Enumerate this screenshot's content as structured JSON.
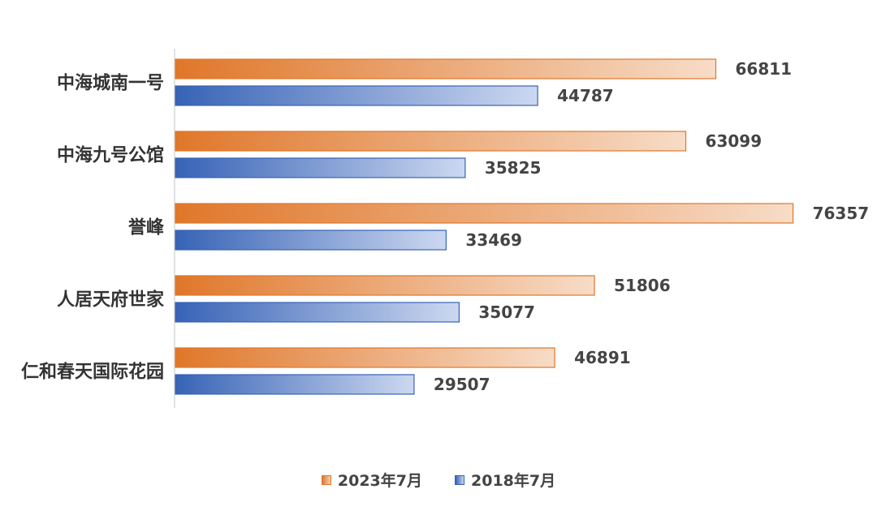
{
  "chart_data": {
    "type": "bar",
    "orientation": "horizontal",
    "categories": [
      "中海城南一号",
      "中海九号公馆",
      "誉峰",
      "人居天府世家",
      "仁和春天国际花园"
    ],
    "series": [
      {
        "name": "2023年7月",
        "color": "#e0772a",
        "values": [
          66811,
          63099,
          76357,
          51806,
          46891
        ]
      },
      {
        "name": "2018年7月",
        "color": "#3763b6",
        "values": [
          44787,
          35825,
          33469,
          35077,
          29507
        ]
      }
    ],
    "xlim": [
      0,
      77000
    ],
    "grid": false,
    "legend_position": "bottom-center",
    "data_labels": [
      "66811",
      "44787",
      "63099",
      "35825",
      "76357",
      "33469",
      "51806",
      "35077",
      "46891",
      "29507"
    ]
  },
  "legend": {
    "items": [
      {
        "label": "2023年7月",
        "color": "#e0772a"
      },
      {
        "label": "2018年7月",
        "color": "#3763b6"
      }
    ]
  }
}
